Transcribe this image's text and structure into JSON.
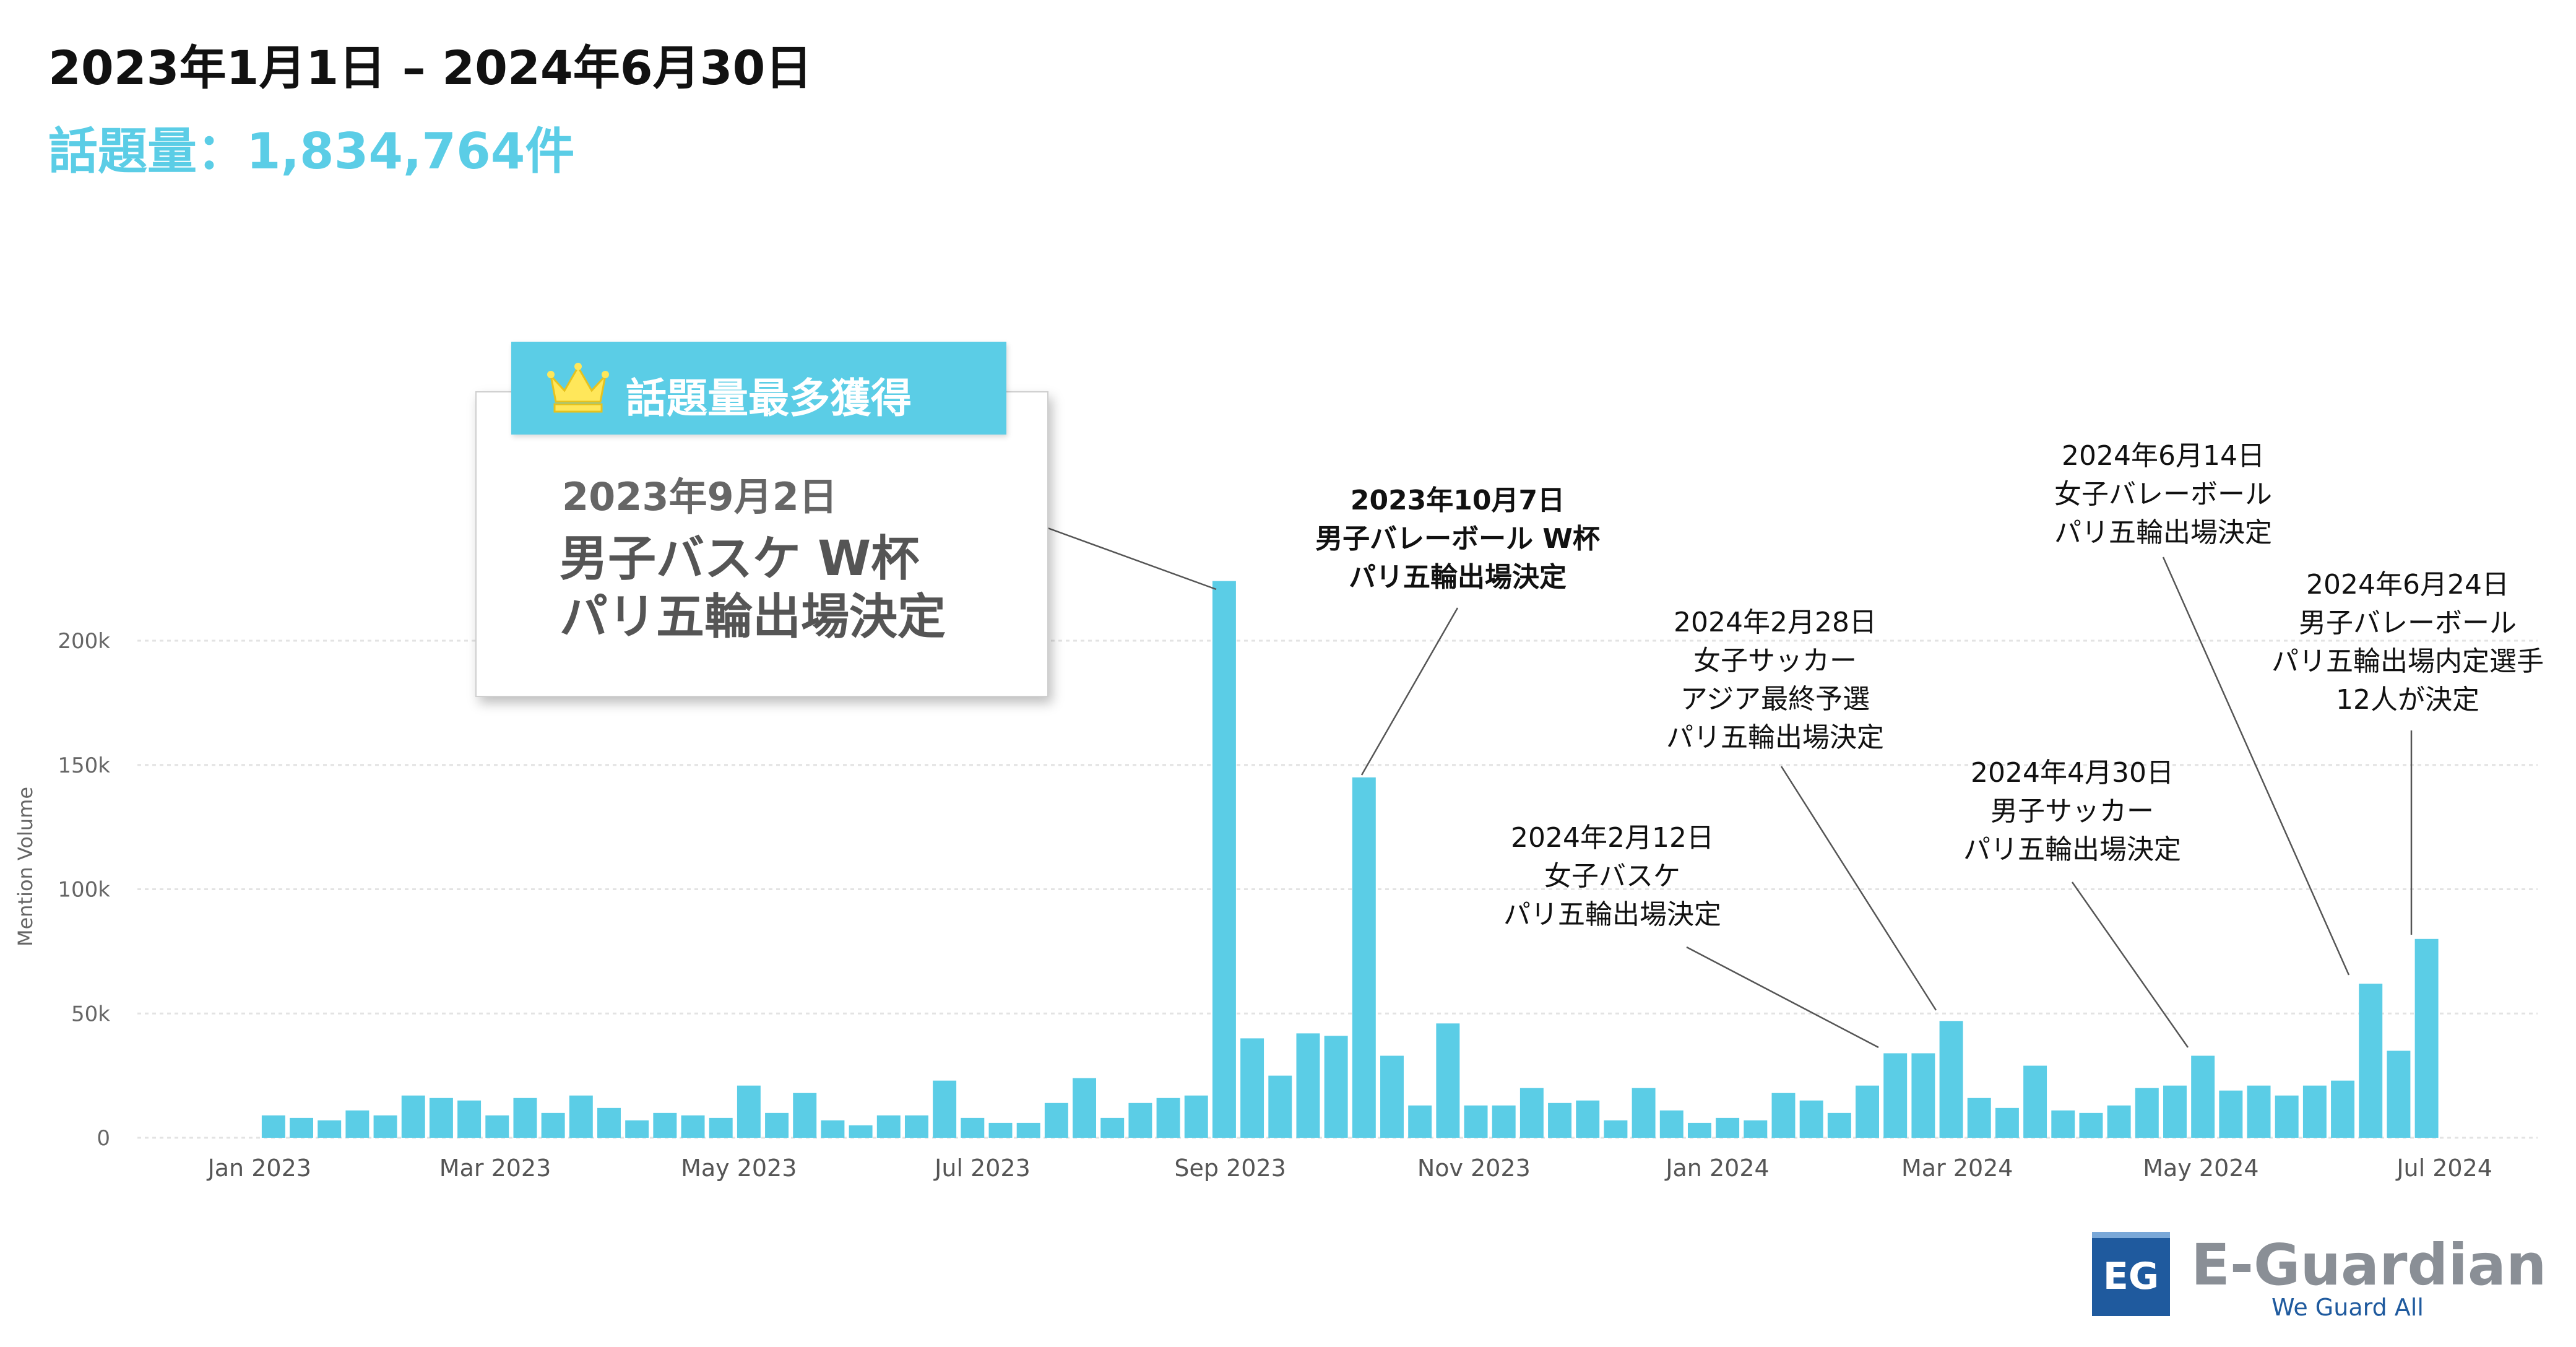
{
  "header": {
    "date_range": "2023年1月1日 – 2024年6月30日",
    "volume_text": "話題量：1,834,764件"
  },
  "callout": {
    "tag": "話題量最多獲得",
    "date": "2023年9月2日",
    "line1": "男子バスケ W杯",
    "line2": "パリ五輪出場決定"
  },
  "annotations": [
    {
      "lines": [
        "2023年10月7日",
        "男子バレーボール W杯",
        "パリ五輪出場決定"
      ],
      "bold": true
    },
    {
      "lines": [
        "2024年2月12日",
        "女子バスケ",
        "パリ五輪出場決定"
      ],
      "bold": false
    },
    {
      "lines": [
        "2024年2月28日",
        "女子サッカー",
        "アジア最終予選",
        "パリ五輪出場決定"
      ],
      "bold": false
    },
    {
      "lines": [
        "2024年4月30日",
        "男子サッカー",
        "パリ五輪出場決定"
      ],
      "bold": false
    },
    {
      "lines": [
        "2024年6月14日",
        "女子バレーボール",
        "パリ五輪出場決定"
      ],
      "bold": false
    },
    {
      "lines": [
        "2024年6月24日",
        "男子バレーボール",
        "パリ五輪出場内定選手",
        "12人が決定"
      ],
      "bold": false
    }
  ],
  "logo": {
    "name": "E-Guardian",
    "tagline": "We Guard All",
    "mark": "EG"
  },
  "colors": {
    "accent": "#5bcde6",
    "logo_blue": "#1f5a9e",
    "logo_gray": "#8a8f96"
  },
  "chart_data": {
    "type": "bar",
    "ylabel": "Mention Volume",
    "ylim": [
      0,
      200000
    ],
    "yticks": [
      0,
      50000,
      100000,
      150000,
      200000
    ],
    "ytick_labels": [
      "0",
      "50k",
      "100k",
      "150k",
      "200k"
    ],
    "x_range": [
      "2022-12-05",
      "2024-07-15"
    ],
    "xticks": [
      {
        "date": "2023-01-01",
        "label": "Jan 2023"
      },
      {
        "date": "2023-03-01",
        "label": "Mar 2023"
      },
      {
        "date": "2023-05-01",
        "label": "May 2023"
      },
      {
        "date": "2023-07-01",
        "label": "Jul 2023"
      },
      {
        "date": "2023-09-01",
        "label": "Sep 2023"
      },
      {
        "date": "2023-11-01",
        "label": "Nov 2023"
      },
      {
        "date": "2024-01-01",
        "label": "Jan 2024"
      },
      {
        "date": "2024-03-01",
        "label": "Mar 2024"
      },
      {
        "date": "2024-05-01",
        "label": "May 2024"
      },
      {
        "date": "2024-07-01",
        "label": "Jul 2024"
      }
    ],
    "grid": true,
    "dates": [
      "2023-01-01",
      "2023-01-08",
      "2023-01-15",
      "2023-01-22",
      "2023-01-29",
      "2023-02-05",
      "2023-02-12",
      "2023-02-19",
      "2023-02-26",
      "2023-03-05",
      "2023-03-12",
      "2023-03-19",
      "2023-03-26",
      "2023-04-02",
      "2023-04-09",
      "2023-04-16",
      "2023-04-23",
      "2023-04-30",
      "2023-05-07",
      "2023-05-14",
      "2023-05-21",
      "2023-05-28",
      "2023-06-04",
      "2023-06-11",
      "2023-06-18",
      "2023-06-25",
      "2023-07-02",
      "2023-07-09",
      "2023-07-16",
      "2023-07-23",
      "2023-07-30",
      "2023-08-06",
      "2023-08-13",
      "2023-08-20",
      "2023-08-27",
      "2023-09-03",
      "2023-09-10",
      "2023-09-17",
      "2023-09-24",
      "2023-10-01",
      "2023-10-08",
      "2023-10-15",
      "2023-10-22",
      "2023-10-29",
      "2023-11-05",
      "2023-11-12",
      "2023-11-19",
      "2023-11-26",
      "2023-12-03",
      "2023-12-10",
      "2023-12-17",
      "2023-12-24",
      "2023-12-31",
      "2024-01-07",
      "2024-01-14",
      "2024-01-21",
      "2024-01-28",
      "2024-02-04",
      "2024-02-11",
      "2024-02-18",
      "2024-02-25",
      "2024-03-03",
      "2024-03-10",
      "2024-03-17",
      "2024-03-24",
      "2024-03-31",
      "2024-04-07",
      "2024-04-14",
      "2024-04-21",
      "2024-04-28",
      "2024-05-05",
      "2024-05-12",
      "2024-05-19",
      "2024-05-26",
      "2024-06-02",
      "2024-06-09",
      "2024-06-16",
      "2024-06-23",
      "2024-06-30"
    ],
    "values": [
      9000,
      8000,
      7000,
      11000,
      9000,
      17000,
      16000,
      15000,
      9000,
      16000,
      10000,
      17000,
      12000,
      7000,
      10000,
      9000,
      8000,
      21000,
      10000,
      18000,
      7000,
      5000,
      9000,
      9000,
      23000,
      8000,
      6000,
      6000,
      14000,
      24000,
      8000,
      14000,
      16000,
      17000,
      224000,
      40000,
      25000,
      42000,
      41000,
      145000,
      33000,
      13000,
      46000,
      13000,
      13000,
      20000,
      14000,
      15000,
      7000,
      20000,
      11000,
      6000,
      8000,
      7000,
      18000,
      15000,
      10000,
      21000,
      34000,
      34000,
      47000,
      16000,
      12000,
      29000,
      11000,
      10000,
      13000,
      20000,
      21000,
      33000,
      19000,
      21000,
      17000,
      21000,
      23000,
      62000,
      35000,
      80000,
      0
    ]
  }
}
